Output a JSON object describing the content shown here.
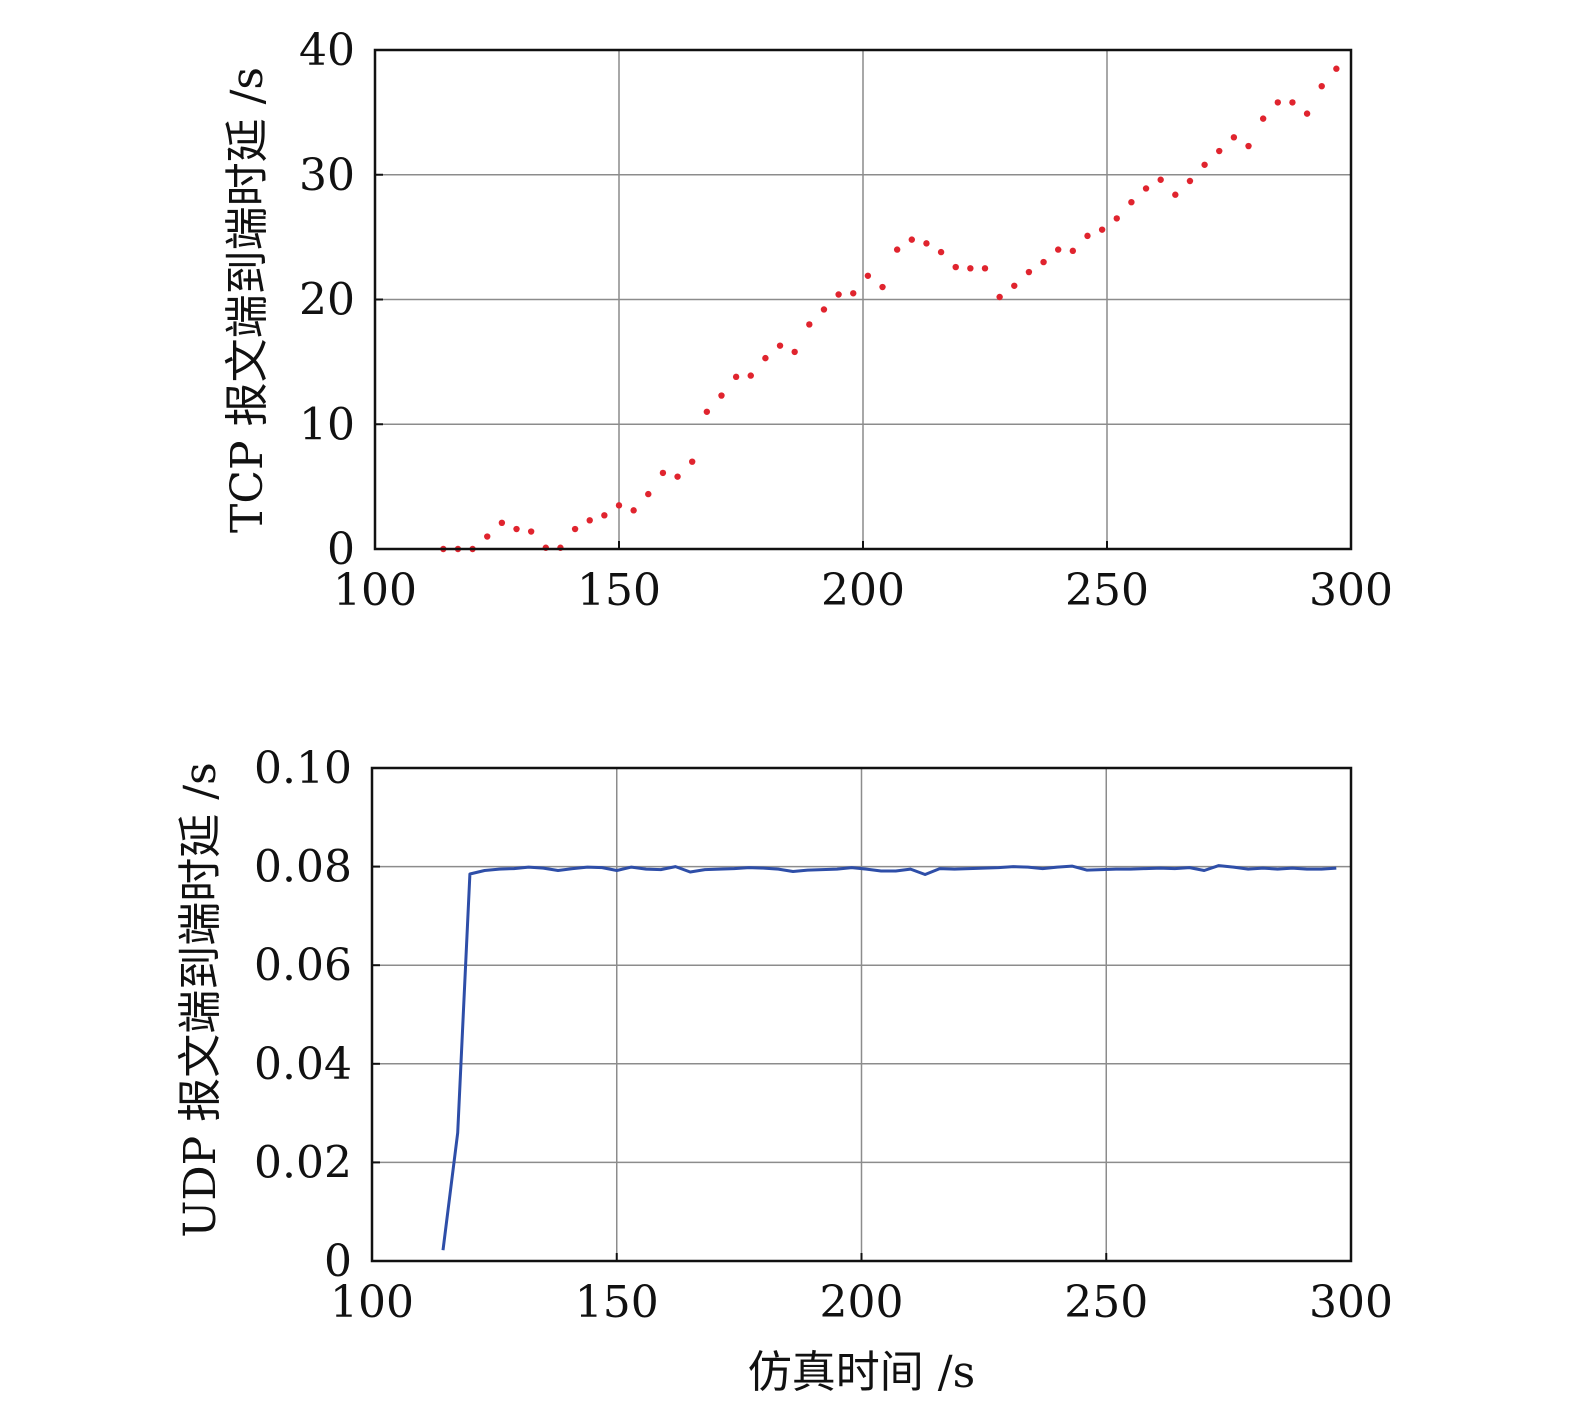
{
  "chart_data": [
    {
      "type": "scatter",
      "ylabel": "TCP 报文端到端时延 /s",
      "xlabel": "",
      "xlim": [
        100,
        300
      ],
      "ylim": [
        0,
        40
      ],
      "x_ticks": [
        100,
        150,
        200,
        250,
        300
      ],
      "y_ticks": [
        0,
        10,
        20,
        30,
        40
      ],
      "grid": true,
      "colors": {
        "marker": "#e0242e"
      },
      "series": [
        {
          "x": [
            114,
            117,
            120,
            123,
            126,
            129,
            132,
            135,
            138,
            141,
            144,
            147,
            150,
            153,
            156,
            159,
            162,
            165,
            168,
            171,
            174,
            177,
            180,
            183,
            186,
            189,
            192,
            195,
            198,
            201,
            204,
            207,
            210,
            213,
            216,
            219,
            222,
            225,
            228,
            231,
            234,
            237,
            240,
            243,
            246,
            249,
            252,
            255,
            258,
            261,
            264,
            267,
            270,
            273,
            276,
            279,
            282,
            285,
            288,
            291,
            294,
            297
          ],
          "y": [
            0,
            0,
            0,
            1.0,
            2.1,
            1.6,
            1.4,
            0.1,
            0.1,
            1.6,
            2.3,
            2.7,
            3.5,
            3.1,
            4.4,
            6.1,
            5.8,
            7.0,
            11.0,
            12.3,
            13.8,
            13.9,
            15.3,
            16.3,
            15.8,
            18.0,
            19.2,
            20.4,
            20.5,
            21.9,
            21.0,
            24.0,
            24.8,
            24.5,
            23.8,
            22.6,
            22.5,
            22.5,
            20.2,
            21.1,
            22.2,
            23.0,
            24.0,
            23.9,
            25.1,
            25.6,
            26.5,
            27.8,
            28.9,
            29.6,
            28.4,
            29.5,
            30.8,
            31.9,
            33.0,
            32.3,
            34.5,
            35.8,
            35.8,
            34.9,
            37.1,
            38.5
          ]
        }
      ]
    },
    {
      "type": "line",
      "ylabel": "UDP 报文端到端时延 /s",
      "xlabel": "仿真时间 /s",
      "xlim": [
        100,
        300
      ],
      "ylim": [
        0,
        0.1
      ],
      "x_ticks": [
        100,
        150,
        200,
        250,
        300
      ],
      "y_ticks": [
        "0",
        "0.02",
        "0.04",
        "0.06",
        "0.08",
        "0.10"
      ],
      "grid": true,
      "colors": {
        "line": "#2e4ea8"
      },
      "series": [
        {
          "x": [
            114.5,
            117.5,
            120,
            123,
            126,
            129,
            132,
            135,
            138,
            141,
            144,
            147,
            150,
            153,
            156,
            159,
            162,
            165,
            168,
            171,
            174,
            177,
            180,
            183,
            186,
            189,
            192,
            195,
            198,
            201,
            204,
            207,
            210,
            213,
            216,
            219,
            222,
            225,
            228,
            231,
            234,
            237,
            240,
            243,
            246,
            249,
            252,
            255,
            258,
            261,
            264,
            267,
            270,
            273,
            276,
            279,
            282,
            285,
            288,
            291,
            294,
            297
          ],
          "y": [
            0.0022,
            0.026,
            0.0785,
            0.0792,
            0.0795,
            0.0796,
            0.0799,
            0.0797,
            0.0792,
            0.0796,
            0.0799,
            0.0798,
            0.0792,
            0.0799,
            0.0795,
            0.0794,
            0.08,
            0.0789,
            0.0794,
            0.0795,
            0.0796,
            0.0798,
            0.0797,
            0.0795,
            0.079,
            0.0793,
            0.0794,
            0.0795,
            0.0798,
            0.0795,
            0.0791,
            0.0791,
            0.0795,
            0.0784,
            0.0796,
            0.0795,
            0.0796,
            0.0797,
            0.0798,
            0.08,
            0.0799,
            0.0796,
            0.0799,
            0.0801,
            0.0793,
            0.0794,
            0.0795,
            0.0795,
            0.0796,
            0.0797,
            0.0796,
            0.0798,
            0.0792,
            0.0802,
            0.0799,
            0.0795,
            0.0797,
            0.0795,
            0.0797,
            0.0795,
            0.0795,
            0.0797
          ]
        }
      ]
    }
  ]
}
